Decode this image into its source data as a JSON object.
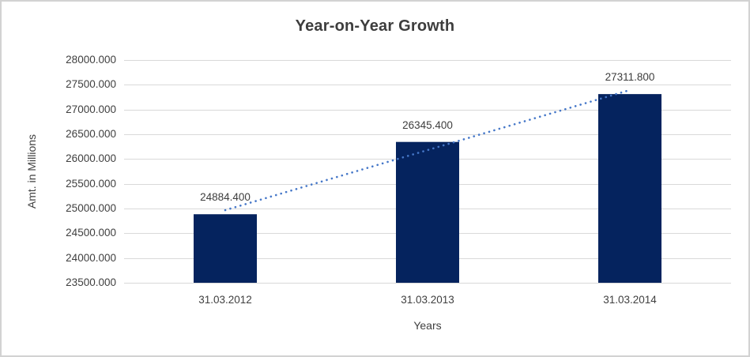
{
  "chart_data": {
    "type": "bar",
    "title": "Year-on-Year Growth",
    "xlabel": "Years",
    "ylabel": "Amt. in Millions",
    "categories": [
      "31.03.2012",
      "31.03.2013",
      "31.03.2014"
    ],
    "values": [
      24884.4,
      26345.4,
      27311.8
    ],
    "data_labels": [
      "24884.400",
      "26345.400",
      "27311.800"
    ],
    "ylim": [
      23500,
      28000
    ],
    "ytick_step": 500,
    "ytick_labels": [
      "23500.000",
      "24000.000",
      "24500.000",
      "25000.000",
      "25500.000",
      "26000.000",
      "26500.000",
      "27000.000",
      "27500.000",
      "28000.000"
    ],
    "grid": "horizontal",
    "legend": "none",
    "trendline": {
      "type": "linear",
      "style": "dotted"
    },
    "colors": {
      "bar": "#05235e",
      "trendline": "#4577c8",
      "gridline": "#d9d9d9",
      "text": "#3f3f3f",
      "border": "#d2d2d2",
      "background": "#ffffff"
    }
  }
}
